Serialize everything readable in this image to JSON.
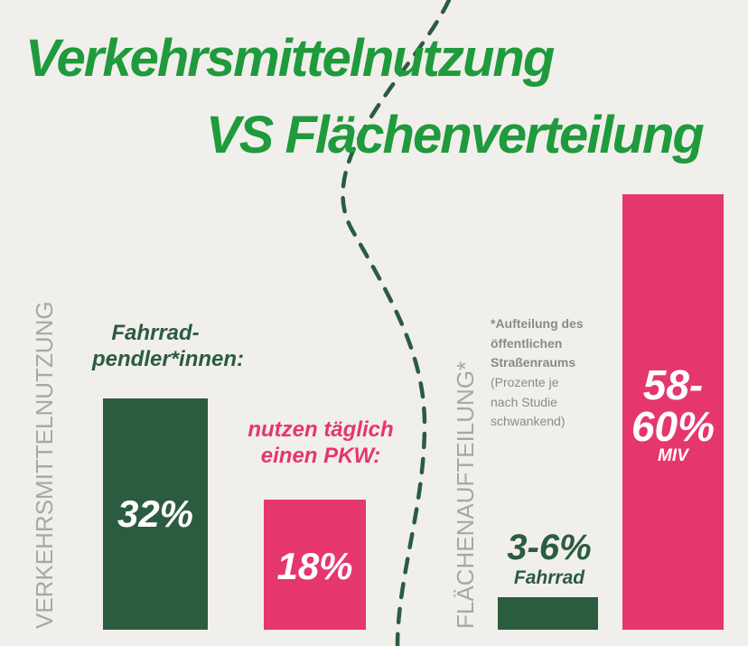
{
  "title_line1": "Verkehrsmittelnutzung",
  "title_line2": "VS Flächenverteilung",
  "colors": {
    "green_title": "#1f9a3c",
    "dark_green": "#2b5c3f",
    "pink": "#e6366e",
    "background": "#f1efeb",
    "grey_text": "#a9a7a3"
  },
  "left_panel": {
    "axis_label": "VERKEHRSMITTELNUTZUNG",
    "bars": [
      {
        "caption_line1": "Fahrrad-",
        "caption_line2": "pendler*innen:",
        "value": 32,
        "label": "32%"
      },
      {
        "caption_line1": "nutzen täglich",
        "caption_line2": "einen PKW:",
        "value": 18,
        "label": "18%"
      }
    ]
  },
  "right_panel": {
    "axis_label": "FLÄCHENAUFTEILUNG*",
    "note_bold": [
      "*Aufteilung des",
      "öffentlichen",
      "Straßenraums"
    ],
    "note_regular": [
      "(Prozente je",
      "nach Studie",
      "schwankend)"
    ],
    "bars": [
      {
        "value_label": "3-6%",
        "sub_label": "Fahrrad",
        "range": [
          3,
          6
        ]
      },
      {
        "value_label_line1": "58-",
        "value_label_line2": "60%",
        "sub_label": "MIV",
        "range": [
          58,
          60
        ]
      }
    ]
  },
  "chart_data": [
    {
      "type": "bar",
      "categories": [
        "Fahrrad-pendler*innen",
        "nutzen täglich einen PKW"
      ],
      "values": [
        32,
        18
      ],
      "ylabel": "VERKEHRSMITTELNUTZUNG"
    },
    {
      "type": "bar",
      "categories": [
        "Fahrrad",
        "MIV"
      ],
      "values": [
        4.5,
        59
      ],
      "ranges": [
        [
          3,
          6
        ],
        [
          58,
          60
        ]
      ],
      "ylabel": "FLÄCHENAUFTEILUNG*"
    }
  ]
}
